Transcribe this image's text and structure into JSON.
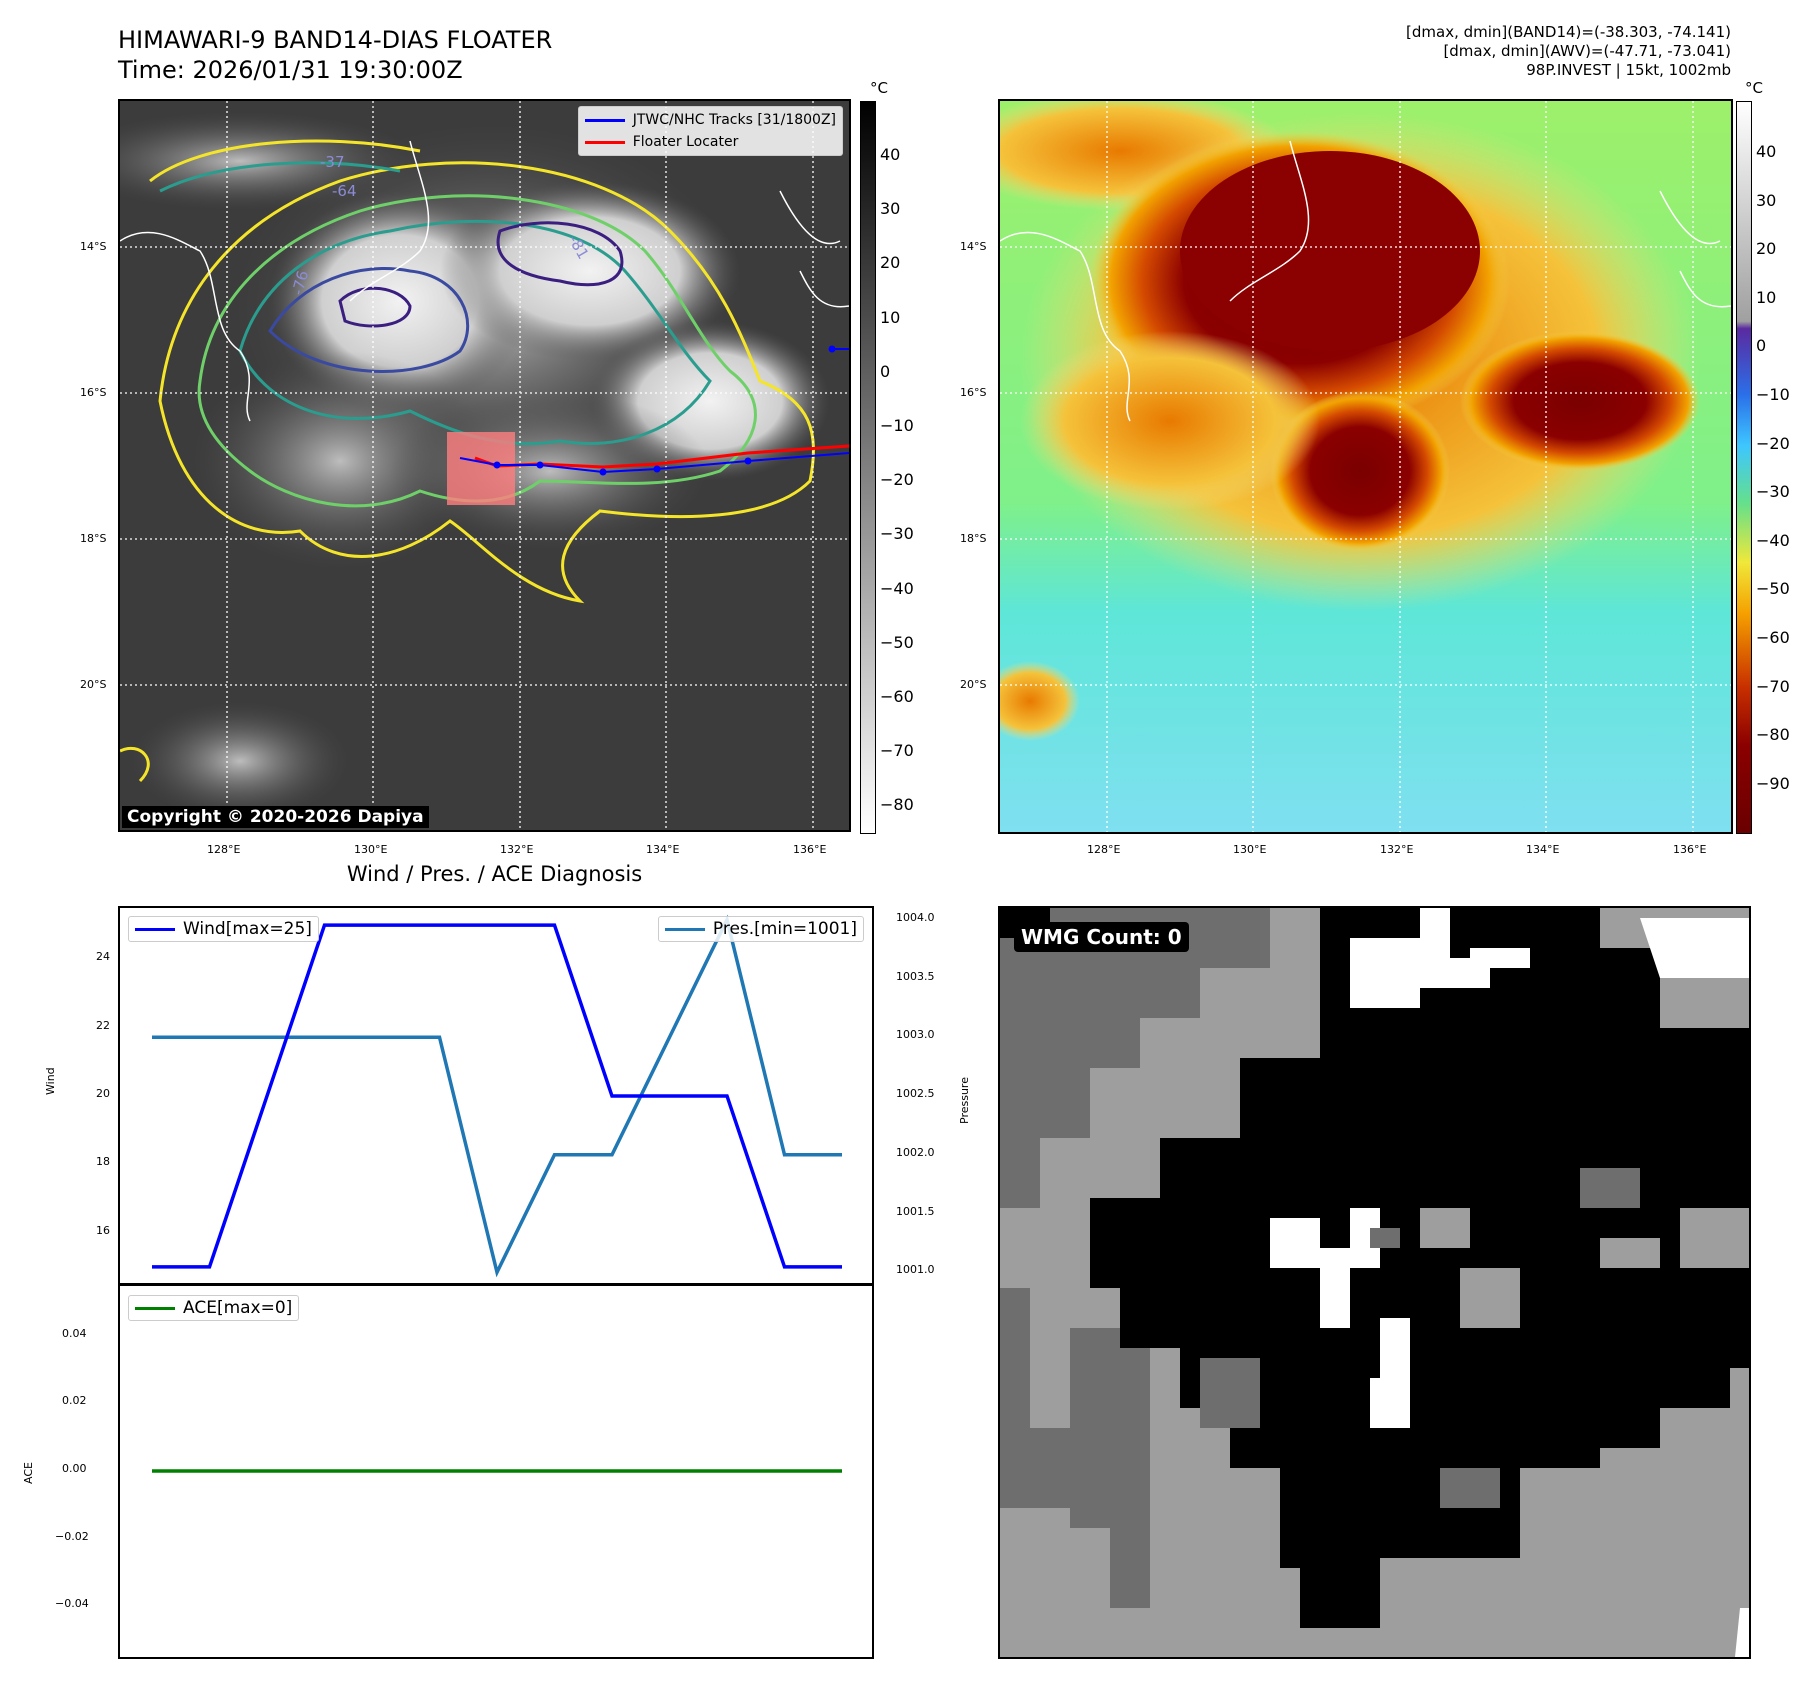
{
  "header": {
    "title_line1": "HIMAWARI-9 BAND14-DIAS FLOATER",
    "title_line2": "Time: 2026/01/31 19:30:00Z",
    "info_line1": "[dmax, dmin](BAND14)=(-38.303, -74.141)",
    "info_line2": "[dmax, dmin](AWV)=(-47.71, -73.041)",
    "info_line3": "98P.INVEST | 15kt, 1002mb"
  },
  "map": {
    "lon_ticks": [
      "128°E",
      "130°E",
      "132°E",
      "134°E",
      "136°E"
    ],
    "lat_ticks": [
      "14°S",
      "16°S",
      "18°S",
      "20°S"
    ],
    "copyright": "Copyright © 2020-2026 Dapiya",
    "legend_tracks": "JTWC/NHC Tracks [31/1800Z]",
    "legend_locater": "Floater Locater",
    "track_color": "#0000ff",
    "locater_color": "#ff0000",
    "contour_labels": [
      "-37",
      "-64",
      "-76",
      "-81"
    ]
  },
  "colorbar_gray": {
    "unit": "°C",
    "ticks": [
      "40",
      "30",
      "20",
      "10",
      "0",
      "−10",
      "−20",
      "−30",
      "−40",
      "−50",
      "−60",
      "−70",
      "−80"
    ]
  },
  "colorbar_color": {
    "unit": "°C",
    "ticks": [
      "40",
      "30",
      "20",
      "10",
      "0",
      "−10",
      "−20",
      "−30",
      "−40",
      "−50",
      "−60",
      "−70",
      "−80",
      "−90"
    ]
  },
  "diagnosis": {
    "title": "Wind / Pres. / ACE Diagnosis",
    "wind_label": "Wind",
    "pressure_label": "Pressure",
    "ace_label": "ACE",
    "wind_legend": "Wind[max=25]",
    "pres_legend": "Pres.[min=1001]",
    "ace_legend": "ACE[max=0]",
    "wind_ticks": [
      "24",
      "22",
      "20",
      "18",
      "16"
    ],
    "pres_ticks": [
      "1004.0",
      "1003.5",
      "1003.0",
      "1002.5",
      "1002.0",
      "1001.5",
      "1001.0"
    ],
    "ace_ticks": [
      "0.04",
      "0.02",
      "0.00",
      "−0.02",
      "−0.04"
    ],
    "wind_color": "#0000ff",
    "pres_color": "#1f77b4",
    "ace_color": "#008000"
  },
  "chart_data": [
    {
      "type": "line",
      "title": "Wind / Pres. / ACE Diagnosis",
      "ylabel": "Wind",
      "y2label": "Pressure",
      "ylim": [
        14.5,
        25.5
      ],
      "y2lim": [
        1000.9,
        1004.1
      ],
      "x": [
        0,
        1,
        2,
        3,
        4,
        5,
        6,
        7,
        8,
        9,
        10,
        11,
        12
      ],
      "series": [
        {
          "name": "Wind[max=25]",
          "axis": "left",
          "values": [
            15,
            15,
            20,
            25,
            25,
            25,
            25,
            25,
            20,
            20,
            20,
            15,
            15
          ]
        },
        {
          "name": "Pres.[min=1001]",
          "axis": "right",
          "values": [
            1003,
            1003,
            1003,
            1003,
            1003,
            1003,
            1001,
            1002,
            1002,
            1003,
            1004,
            1002,
            1002
          ]
        }
      ]
    },
    {
      "type": "line",
      "ylabel": "ACE",
      "ylim": [
        -0.055,
        0.055
      ],
      "x": [
        0,
        12
      ],
      "series": [
        {
          "name": "ACE[max=0]",
          "values": [
            0,
            0
          ]
        }
      ]
    }
  ],
  "wmg": {
    "label": "WMG Count: 0"
  }
}
